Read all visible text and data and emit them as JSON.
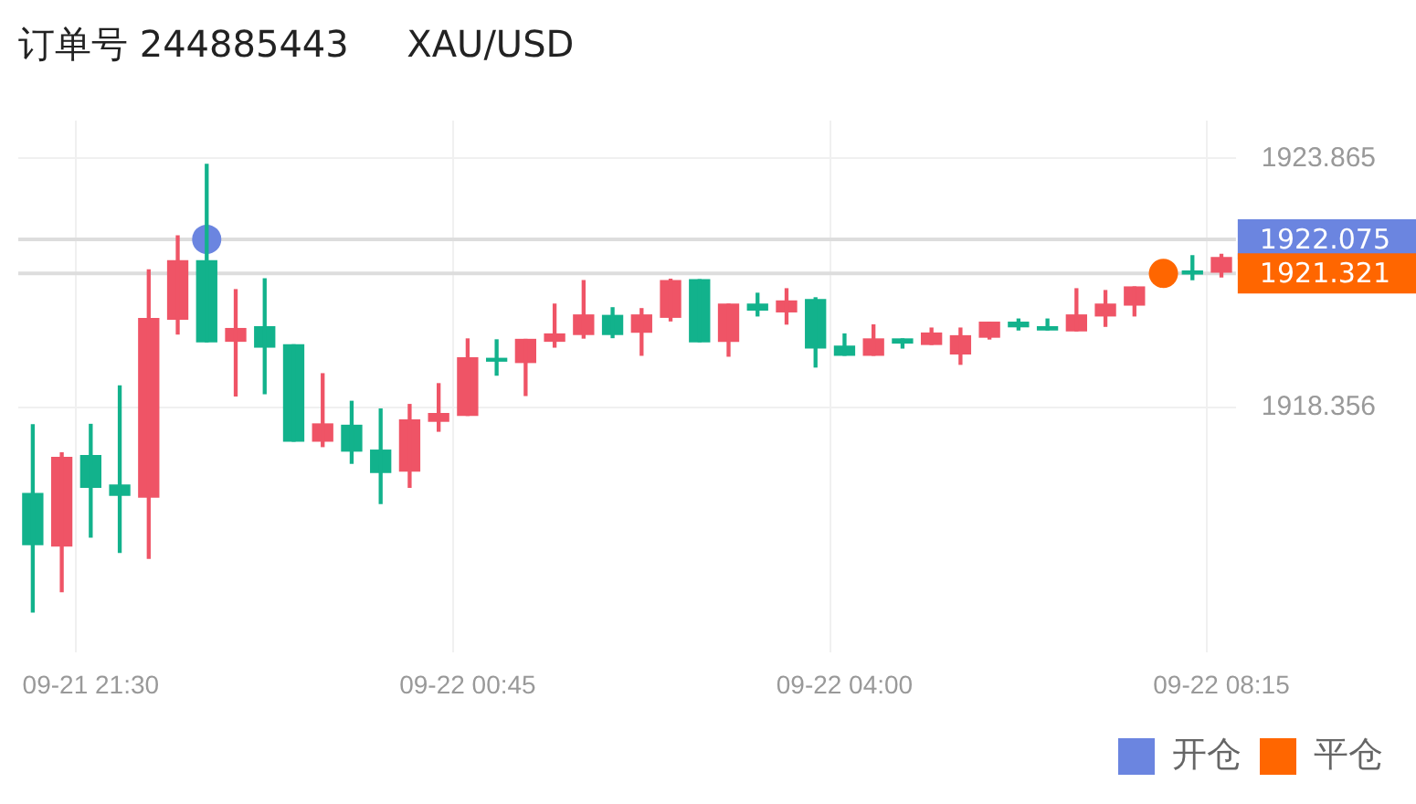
{
  "chart_data": {
    "type": "candlestick",
    "title": "订单号 244885443     XAU/USD",
    "categories": [
      null,
      null,
      "09-21 21:30",
      null,
      null,
      null,
      null,
      null,
      null,
      null,
      null,
      null,
      null,
      null,
      null,
      "09-22 00:45",
      null,
      null,
      null,
      null,
      null,
      null,
      null,
      null,
      null,
      null,
      null,
      null,
      "09-22 04:00",
      null,
      null,
      null,
      null,
      null,
      null,
      null,
      null,
      null,
      null,
      null,
      null,
      "09-22 08:15"
    ],
    "ohlc": [
      [
        1916.45,
        1917.97,
        1913.83,
        1915.32
      ],
      [
        1915.29,
        1917.35,
        1914.28,
        1917.25
      ],
      [
        1917.29,
        1917.98,
        1915.49,
        1916.59
      ],
      [
        1916.64,
        1918.83,
        1915.15,
        1916.41
      ],
      [
        1916.37,
        1921.4,
        1915.02,
        1920.32
      ],
      [
        1920.31,
        1922.15,
        1919.98,
        1921.6
      ],
      [
        1921.6,
        1923.73,
        1919.81,
        1919.81
      ],
      [
        1919.82,
        1920.96,
        1918.61,
        1920.1
      ],
      [
        1920.14,
        1921.2,
        1918.66,
        1919.69
      ],
      [
        1919.74,
        1919.74,
        1917.61,
        1917.61
      ],
      [
        1917.61,
        1919.1,
        1917.49,
        1917.99
      ],
      [
        1917.96,
        1918.49,
        1917.12,
        1917.39
      ],
      [
        1917.41,
        1918.32,
        1916.23,
        1916.92
      ],
      [
        1916.95,
        1918.42,
        1916.59,
        1918.08
      ],
      [
        1918.05,
        1918.88,
        1917.83,
        1918.22
      ],
      [
        1918.18,
        1919.87,
        1918.18,
        1919.45
      ],
      [
        1919.43,
        1919.85,
        1919.07,
        1919.38
      ],
      [
        1919.35,
        1919.86,
        1918.62,
        1919.86
      ],
      [
        1919.82,
        1920.64,
        1919.69,
        1919.98
      ],
      [
        1919.97,
        1921.16,
        1919.89,
        1920.4
      ],
      [
        1920.39,
        1920.56,
        1919.9,
        1919.97
      ],
      [
        1920.02,
        1920.54,
        1919.51,
        1920.4
      ],
      [
        1920.35,
        1921.19,
        1920.27,
        1921.16
      ],
      [
        1921.18,
        1921.18,
        1919.81,
        1919.81
      ],
      [
        1919.82,
        1920.64,
        1919.49,
        1920.64
      ],
      [
        1920.64,
        1920.88,
        1920.38,
        1920.51
      ],
      [
        1920.47,
        1920.98,
        1920.2,
        1920.71
      ],
      [
        1920.74,
        1920.78,
        1919.25,
        1919.67
      ],
      [
        1919.71,
        1919.98,
        1919.51,
        1919.51
      ],
      [
        1919.51,
        1920.18,
        1919.51,
        1919.87
      ],
      [
        1919.87,
        1919.87,
        1919.67,
        1919.78
      ],
      [
        1919.75,
        1920.11,
        1919.75,
        1920.0
      ],
      [
        1919.54,
        1920.11,
        1919.31,
        1919.94
      ],
      [
        1919.91,
        1920.24,
        1919.87,
        1920.24
      ],
      [
        1920.24,
        1920.31,
        1920.07,
        1920.14
      ],
      [
        1920.14,
        1920.31,
        1920.07,
        1920.07
      ],
      [
        1920.05,
        1920.98,
        1920.05,
        1920.4
      ],
      [
        1920.38,
        1920.94,
        1920.15,
        1920.64
      ],
      [
        1920.62,
        1921.02,
        1920.38,
        1921.02
      ],
      null,
      [
        1921.35,
        1921.71,
        1921.18,
        1921.31
      ],
      [
        1921.35,
        1921.74,
        1921.24,
        1921.67
      ]
    ],
    "colors": [
      "#12b28c",
      "#ef5466",
      "#12b28c",
      "#12b28c",
      "#ef5466",
      "#ef5466",
      "#12b28c",
      "#ef5466",
      "#12b28c",
      "#12b28c",
      "#ef5466",
      "#12b28c",
      "#12b28c",
      "#ef5466",
      "#ef5466",
      "#ef5466",
      "#12b28c",
      "#ef5466",
      "#ef5466",
      "#ef5466",
      "#12b28c",
      "#ef5466",
      "#ef5466",
      "#12b28c",
      "#ef5466",
      "#12b28c",
      "#ef5466",
      "#12b28c",
      "#12b28c",
      "#ef5466",
      "#12b28c",
      "#ef5466",
      "#ef5466",
      "#ef5466",
      "#12b28c",
      "#12b28c",
      "#ef5466",
      "#ef5466",
      "#ef5466",
      null,
      "#12b28c",
      "#ef5466"
    ],
    "series": [
      {
        "name": "开仓",
        "type": "scatter",
        "color": "#6b85e0",
        "values": [
          null,
          null,
          null,
          null,
          null,
          null,
          1922.075,
          null,
          null,
          null,
          null,
          null,
          null,
          null,
          null,
          null,
          null,
          null,
          null,
          null,
          null,
          null,
          null,
          null,
          null,
          null,
          null,
          null,
          null,
          null,
          null,
          null,
          null,
          null,
          null,
          null,
          null,
          null,
          null,
          null,
          null,
          null
        ]
      },
      {
        "name": "平仓",
        "type": "scatter",
        "color": "#ff6600",
        "values": [
          null,
          null,
          null,
          null,
          null,
          null,
          null,
          null,
          null,
          null,
          null,
          null,
          null,
          null,
          null,
          null,
          null,
          null,
          null,
          null,
          null,
          null,
          null,
          null,
          null,
          null,
          null,
          null,
          null,
          null,
          null,
          null,
          null,
          null,
          null,
          null,
          null,
          null,
          null,
          1921.321,
          null,
          null
        ]
      }
    ],
    "ref_lines": [
      {
        "axis": "y",
        "value": 1922.075,
        "label": "1922.075"
      },
      {
        "axis": "y",
        "value": 1921.321,
        "label": "1921.321"
      }
    ],
    "ylim": [
      1912.93,
      1924.7
    ],
    "yticks": [
      1923.865,
      1918.356
    ],
    "grid": true,
    "legend": "bottom right",
    "marker": "circle"
  }
}
